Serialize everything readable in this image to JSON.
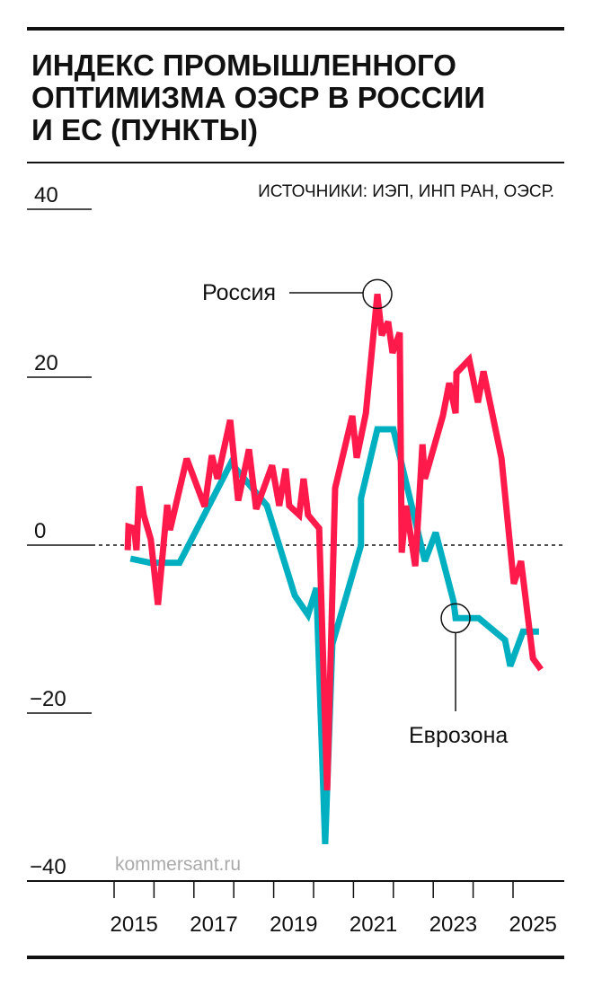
{
  "chart_data": {
    "type": "line",
    "title_lines": [
      "ИНДЕКС ПРОМЫШЛЕННОГО",
      "ОПТИМИЗМА ОЭСР В РОССИИ",
      "И ЕС (ПУНКТЫ)"
    ],
    "source": "ИСТОЧНИКИ: ИЭП, ИНП РАН, ОЭСР.",
    "watermark": "kommersant.ru",
    "xlabel": "",
    "ylabel": "",
    "xlim": [
      2015,
      2026.3
    ],
    "ylim": [
      -40,
      40
    ],
    "y_ticks": [
      {
        "value": 40,
        "label": "40"
      },
      {
        "value": 20,
        "label": "20"
      },
      {
        "value": 0,
        "label": "0"
      },
      {
        "value": -20,
        "label": "−20"
      },
      {
        "value": -40,
        "label": "−40"
      }
    ],
    "x_tick_labels": [
      "2015",
      "2017",
      "2019",
      "2021",
      "2023",
      "2025"
    ],
    "zero_line": "dashed",
    "grid": false,
    "colors": {
      "russia": "#ff1a4b",
      "eurozone": "#00b0c0"
    },
    "series": [
      {
        "name": "Россия",
        "color": "#ff1a4b",
        "points": [
          [
            2015.34,
            -0.6
          ],
          [
            2015.36,
            2.2
          ],
          [
            2015.5,
            2.0
          ],
          [
            2015.56,
            -0.6
          ],
          [
            2015.63,
            7.0
          ],
          [
            2015.74,
            3.6
          ],
          [
            2015.92,
            0.7
          ],
          [
            2016.1,
            -7.1
          ],
          [
            2016.33,
            4.8
          ],
          [
            2016.4,
            1.8
          ],
          [
            2016.82,
            10.3
          ],
          [
            2017.27,
            4.6
          ],
          [
            2017.45,
            10.7
          ],
          [
            2017.59,
            7.9
          ],
          [
            2017.91,
            14.9
          ],
          [
            2018.11,
            5.3
          ],
          [
            2018.38,
            11.4
          ],
          [
            2018.56,
            4.3
          ],
          [
            2018.96,
            9.5
          ],
          [
            2019.14,
            4.7
          ],
          [
            2019.3,
            9.1
          ],
          [
            2019.39,
            4.7
          ],
          [
            2019.64,
            3.6
          ],
          [
            2019.75,
            7.9
          ],
          [
            2019.86,
            3.6
          ],
          [
            2020.14,
            2.0
          ],
          [
            2020.34,
            -29.2
          ],
          [
            2020.54,
            6.8
          ],
          [
            2020.97,
            15.4
          ],
          [
            2021.08,
            10.4
          ],
          [
            2021.31,
            15.7
          ],
          [
            2021.6,
            29.9
          ],
          [
            2021.71,
            25.0
          ],
          [
            2021.87,
            26.6
          ],
          [
            2021.98,
            22.9
          ],
          [
            2022.16,
            25.3
          ],
          [
            2022.21,
            -0.9
          ],
          [
            2022.32,
            4.7
          ],
          [
            2022.55,
            -2.5
          ],
          [
            2022.73,
            12.0
          ],
          [
            2022.79,
            7.9
          ],
          [
            2023.24,
            15.4
          ],
          [
            2023.4,
            19.3
          ],
          [
            2023.56,
            15.7
          ],
          [
            2023.58,
            20.5
          ],
          [
            2023.9,
            22.1
          ],
          [
            2024.12,
            17.0
          ],
          [
            2024.26,
            20.7
          ],
          [
            2024.71,
            10.4
          ],
          [
            2025.02,
            -4.6
          ],
          [
            2025.2,
            -1.9
          ],
          [
            2025.5,
            -13.5
          ],
          [
            2025.7,
            -14.8
          ]
        ]
      },
      {
        "name": "Еврозона",
        "color": "#00b0c0",
        "points": [
          [
            2015.41,
            -1.6
          ],
          [
            2015.9,
            -2.1
          ],
          [
            2016.64,
            -2.1
          ],
          [
            2017.93,
            9.8
          ],
          [
            2018.83,
            4.7
          ],
          [
            2019.53,
            -6.0
          ],
          [
            2019.86,
            -8.3
          ],
          [
            2020.07,
            -5.1
          ],
          [
            2020.29,
            -35.6
          ],
          [
            2020.47,
            -11.8
          ],
          [
            2021.19,
            0
          ],
          [
            2021.19,
            5.6
          ],
          [
            2021.6,
            13.8
          ],
          [
            2022.0,
            13.8
          ],
          [
            2022.79,
            -1.9
          ],
          [
            2023.06,
            1.5
          ],
          [
            2023.51,
            -6.7
          ],
          [
            2023.56,
            -8.7
          ],
          [
            2024.14,
            -8.7
          ],
          [
            2024.8,
            -11.3
          ],
          [
            2024.93,
            -14.4
          ],
          [
            2025.25,
            -10.3
          ],
          [
            2025.65,
            -10.3
          ]
        ]
      }
    ],
    "annotations": [
      {
        "label": "Россия",
        "series": "Россия",
        "at": [
          2021.6,
          29.9
        ]
      },
      {
        "label": "Еврозона",
        "series": "Еврозона",
        "at": [
          2023.56,
          -8.7
        ]
      }
    ]
  }
}
